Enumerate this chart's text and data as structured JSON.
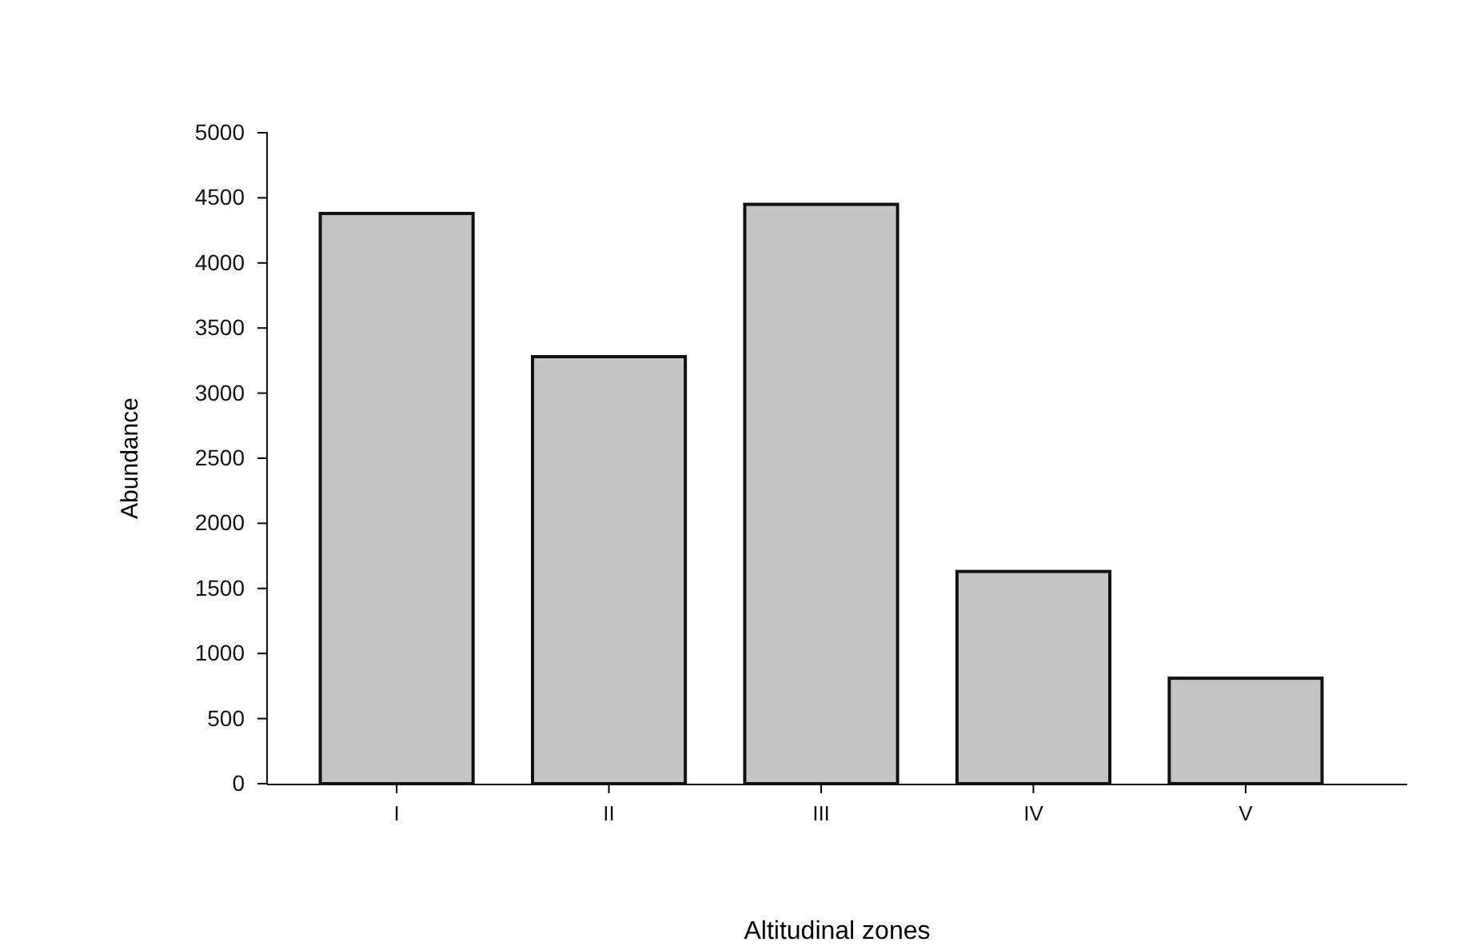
{
  "chart_data": {
    "type": "bar",
    "xlabel": "Altitudinal zones",
    "ylabel": "Abundance",
    "categories": [
      "I",
      "II",
      "III",
      "IV",
      "V"
    ],
    "values": [
      4380,
      3280,
      4450,
      1630,
      810
    ],
    "color": "#c4c4c4",
    "ylim": [
      0,
      5000
    ],
    "yticks": [
      0,
      500,
      1000,
      1500,
      2000,
      2500,
      3000,
      3500,
      4000,
      4500,
      5000
    ],
    "grid": false
  }
}
